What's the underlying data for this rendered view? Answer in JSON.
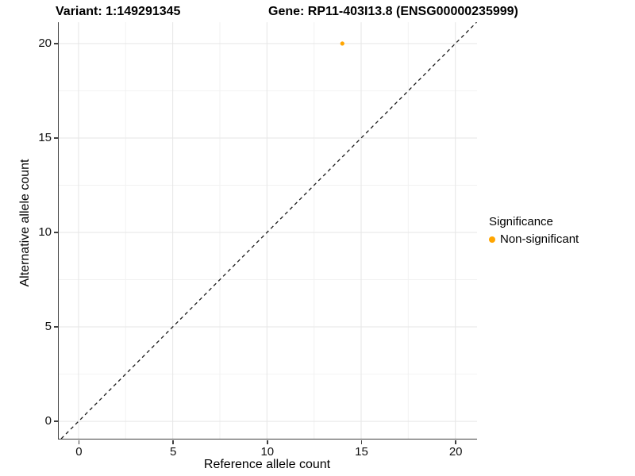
{
  "chart_data": {
    "type": "scatter",
    "titles": [
      "Variant: 1:149291345",
      "Gene: RP11-403I13.8 (ENSG00000235999)"
    ],
    "xlabel": "Reference allele count",
    "ylabel": "Alternative allele count",
    "x_ticks": [
      0,
      5,
      10,
      15,
      20
    ],
    "y_ticks": [
      0,
      5,
      10,
      15,
      20
    ],
    "x_minor": [
      2.5,
      7.5,
      12.5,
      17.5
    ],
    "y_minor": [
      2.5,
      7.5,
      12.5,
      17.5
    ],
    "x_domain": [
      -1.05,
      21.15
    ],
    "y_domain": [
      -0.92,
      21.13
    ],
    "grid": true,
    "series": [
      {
        "name": "Non-significant",
        "color": "#FFA500",
        "points": [
          [
            14,
            20
          ]
        ],
        "point_radius": 2.6
      }
    ],
    "reference_line": {
      "kind": "identity",
      "dash": true,
      "color": "#1a1a1a"
    },
    "legend": {
      "title": "Significance",
      "position": "right",
      "items": [
        {
          "label": "Non-significant",
          "color": "#FFA500"
        }
      ]
    },
    "colors": {
      "grid_major": "#e6e6e6",
      "grid_minor": "#f2f2f2",
      "axis": "#3f3f3f"
    }
  }
}
